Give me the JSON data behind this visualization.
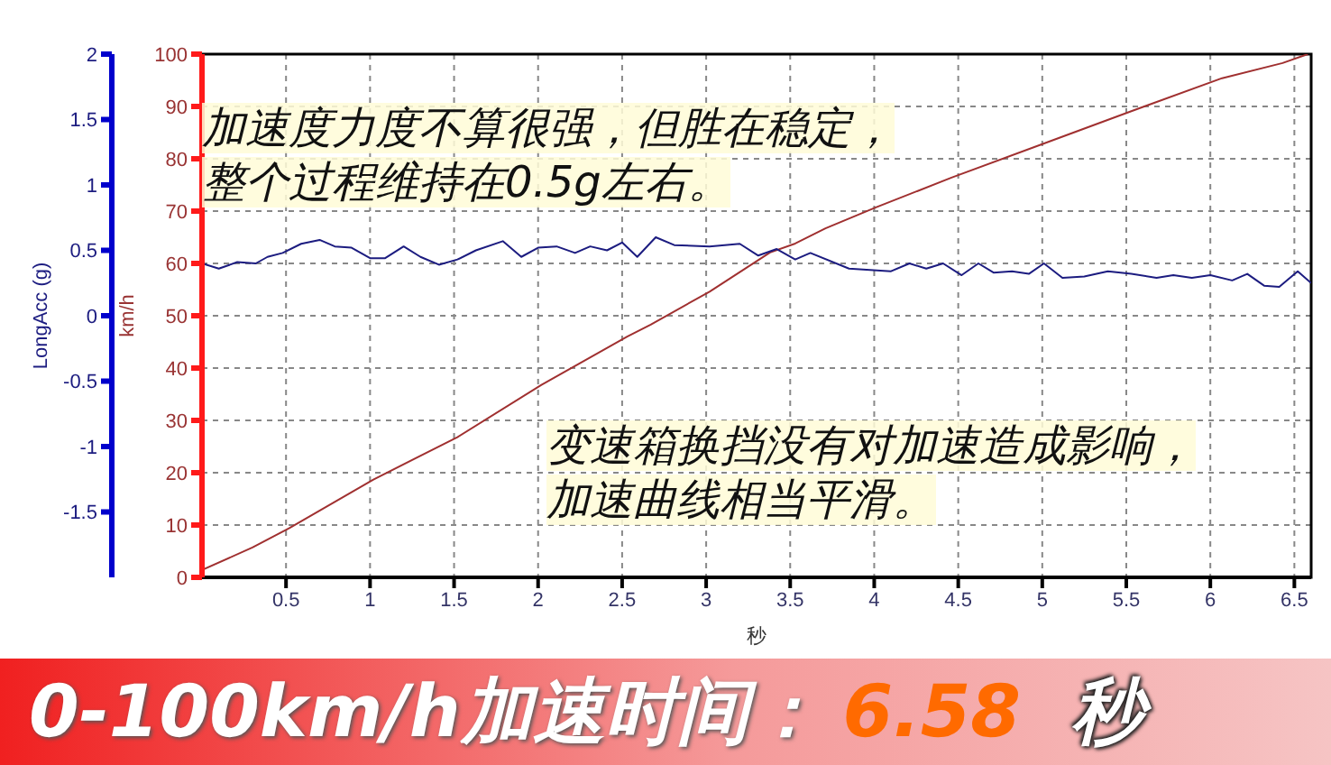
{
  "chart_data": {
    "type": "line",
    "xlabel": "秒",
    "ylabel": "km/h",
    "y2label": "LongAcc (g)",
    "xlim": [
      0,
      6.6
    ],
    "xticks": [
      0.5,
      1,
      1.5,
      2,
      2.5,
      3,
      3.5,
      4,
      4.5,
      5,
      5.5,
      6,
      6.5
    ],
    "ylim": [
      0,
      100
    ],
    "yticks": [
      0,
      10,
      20,
      30,
      40,
      50,
      60,
      70,
      80,
      90,
      100
    ],
    "y2lim": [
      -2,
      2
    ],
    "y2ticks": [
      -1.5,
      -1,
      -0.5,
      0,
      0.5,
      1,
      1.5,
      2
    ],
    "grid": true,
    "marker": "none",
    "series": [
      {
        "color": "#a03030",
        "x": [
          0,
          0.3,
          0.52,
          1.02,
          1.52,
          2.02,
          2.53,
          2.67,
          3.02,
          3.38,
          3.53,
          3.71,
          4.01,
          4.46,
          5.0,
          5.53,
          6.07,
          6.43,
          6.58
        ],
        "values": [
          1.4,
          5.7,
          9.4,
          18.7,
          26.8,
          36.8,
          46,
          48.3,
          54.6,
          62.1,
          63.8,
          66.7,
          70.7,
          76.4,
          82.8,
          89.1,
          95.4,
          98.3,
          100
        ]
      },
      {
        "color": "#1c1c80",
        "axis": "y2",
        "x": [
          0,
          0.1,
          0.21,
          0.32,
          0.39,
          0.48,
          0.59,
          0.7,
          0.79,
          0.89,
          1.0,
          1.09,
          1.2,
          1.3,
          1.41,
          1.52,
          1.63,
          1.79,
          1.9,
          2.0,
          2.11,
          2.22,
          2.31,
          2.41,
          2.5,
          2.59,
          2.7,
          2.81,
          3.02,
          3.2,
          3.31,
          3.42,
          3.53,
          3.62,
          3.85,
          4.1,
          4.21,
          4.31,
          4.41,
          4.52,
          4.62,
          4.71,
          4.82,
          4.92,
          5.01,
          5.12,
          5.25,
          5.39,
          5.53,
          5.68,
          5.78,
          5.89,
          6.0,
          6.13,
          6.22,
          6.32,
          6.41,
          6.52,
          6.6
        ],
        "values": [
          0.4,
          0.36,
          0.41,
          0.4,
          0.45,
          0.48,
          0.55,
          0.58,
          0.53,
          0.52,
          0.44,
          0.44,
          0.53,
          0.45,
          0.39,
          0.43,
          0.5,
          0.57,
          0.45,
          0.52,
          0.53,
          0.48,
          0.53,
          0.5,
          0.56,
          0.45,
          0.6,
          0.54,
          0.53,
          0.55,
          0.46,
          0.51,
          0.43,
          0.48,
          0.36,
          0.34,
          0.4,
          0.36,
          0.4,
          0.31,
          0.4,
          0.33,
          0.34,
          0.32,
          0.4,
          0.29,
          0.3,
          0.34,
          0.32,
          0.29,
          0.31,
          0.29,
          0.31,
          0.27,
          0.32,
          0.23,
          0.22,
          0.34,
          0.25
        ]
      }
    ],
    "annotations": [
      "加速度力度不算很强，但胜在稳定，整个过程维持在0.5g左右。",
      "变速箱换挡没有对加速造成影响，加速曲线相当平滑。",
      "0-100km/h加速时间：",
      "6.58",
      "秒"
    ]
  }
}
